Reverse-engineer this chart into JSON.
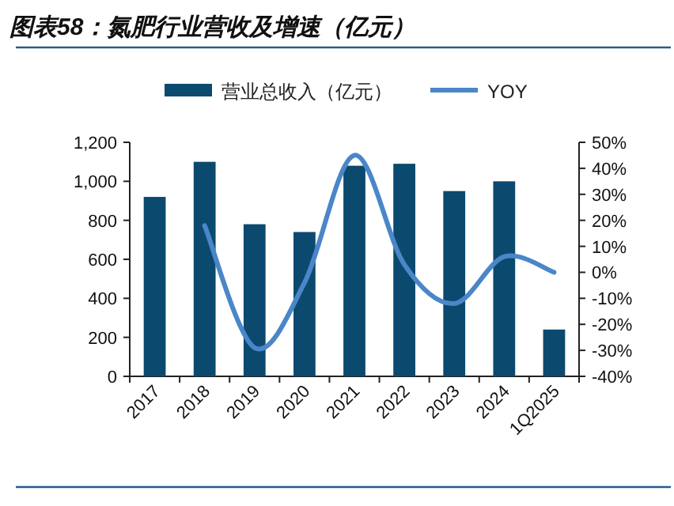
{
  "chart_data": {
    "type": "bar",
    "title": "图表58：氮肥行业营收及增速（亿元）",
    "categories": [
      "2017",
      "2018",
      "2019",
      "2020",
      "2021",
      "2022",
      "2023",
      "2024",
      "1Q2025"
    ],
    "series": [
      {
        "name": "营业总收入（亿元）",
        "color": "#0b4a6e",
        "values": [
          920,
          1100,
          780,
          740,
          1080,
          1090,
          950,
          1000,
          240
        ]
      },
      {
        "name": "YOY",
        "type": "line",
        "axis": "y2",
        "color": "#4a86c8",
        "values": [
          null,
          18,
          -29,
          -4,
          45,
          3,
          -12,
          6,
          0
        ]
      }
    ],
    "ylim": [
      0,
      1200
    ],
    "yticks": [
      0,
      200,
      400,
      600,
      800,
      {
        "value": 1000,
        "label": "1,000"
      },
      {
        "value": 1200,
        "label": "1,200"
      }
    ],
    "y2lim": [
      -40,
      50
    ],
    "y2ticks": [
      {
        "value": -40,
        "label": "-40%"
      },
      {
        "value": -30,
        "label": "-30%"
      },
      {
        "value": -20,
        "label": "-20%"
      },
      {
        "value": -10,
        "label": "-10%"
      },
      {
        "value": 0,
        "label": "0%"
      },
      {
        "value": 10,
        "label": "10%"
      },
      {
        "value": 20,
        "label": "20%"
      },
      {
        "value": 30,
        "label": "30%"
      },
      {
        "value": 40,
        "label": "40%"
      },
      {
        "value": 50,
        "label": "50%"
      }
    ],
    "legend": "top",
    "grid": false
  }
}
